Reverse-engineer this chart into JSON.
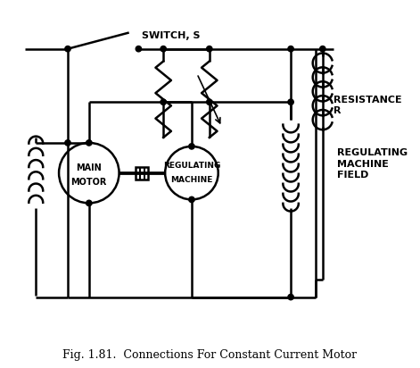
{
  "title": "Fig. 1.81.  Connections For Constant Current Motor",
  "title_italic_part": "Connections For Constant Current Motor",
  "title_bold_part": "Fig. 1.81.",
  "label_switch": "SWITCH, S",
  "label_resistance": "RESISTANCE\nR",
  "label_reg_machine": "REGULATING\nMACHINE",
  "label_reg_field": "REGULATING\nMACHINE\nFIELD",
  "label_main_motor": "MAIN\nMOTOR",
  "bg_color": "#ffffff",
  "line_color": "#000000",
  "figsize": [
    4.71,
    4.12
  ],
  "dpi": 100
}
